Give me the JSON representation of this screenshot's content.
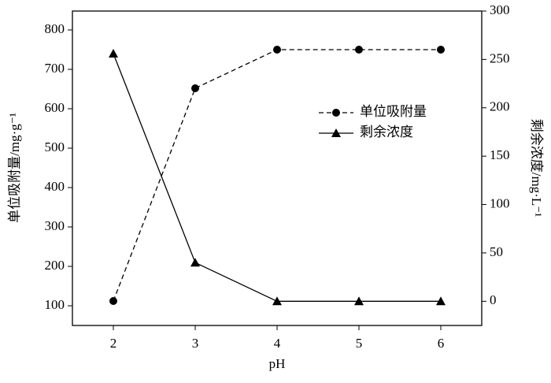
{
  "chart_data": {
    "type": "line",
    "x_label": "pH",
    "y_label": "单位吸附量/mg·g⁻¹",
    "y2_label": "剩余浓度/mg·L⁻¹",
    "x": [
      2,
      3,
      4,
      5,
      6
    ],
    "xlim": [
      1.5,
      6.5
    ],
    "xticks": [
      2,
      3,
      4,
      5,
      6
    ],
    "ylim": [
      50,
      848
    ],
    "yticks": [
      100,
      200,
      300,
      400,
      500,
      600,
      700,
      800
    ],
    "y2lim": [
      -25,
      300
    ],
    "y2ticks": [
      0,
      50,
      100,
      150,
      200,
      250,
      300
    ],
    "legend": "upper right",
    "series": [
      {
        "name": "单位吸附量",
        "color": "#000000",
        "line_style": "dashed",
        "marker": "circle",
        "values": [
          112,
          652,
          750,
          750,
          750
        ]
      },
      {
        "name": "剩余浓度",
        "color": "#000000",
        "line_style": "solid",
        "marker": "triangle",
        "axis": "y2",
        "values": [
          256,
          40,
          0,
          0,
          0
        ]
      }
    ]
  }
}
